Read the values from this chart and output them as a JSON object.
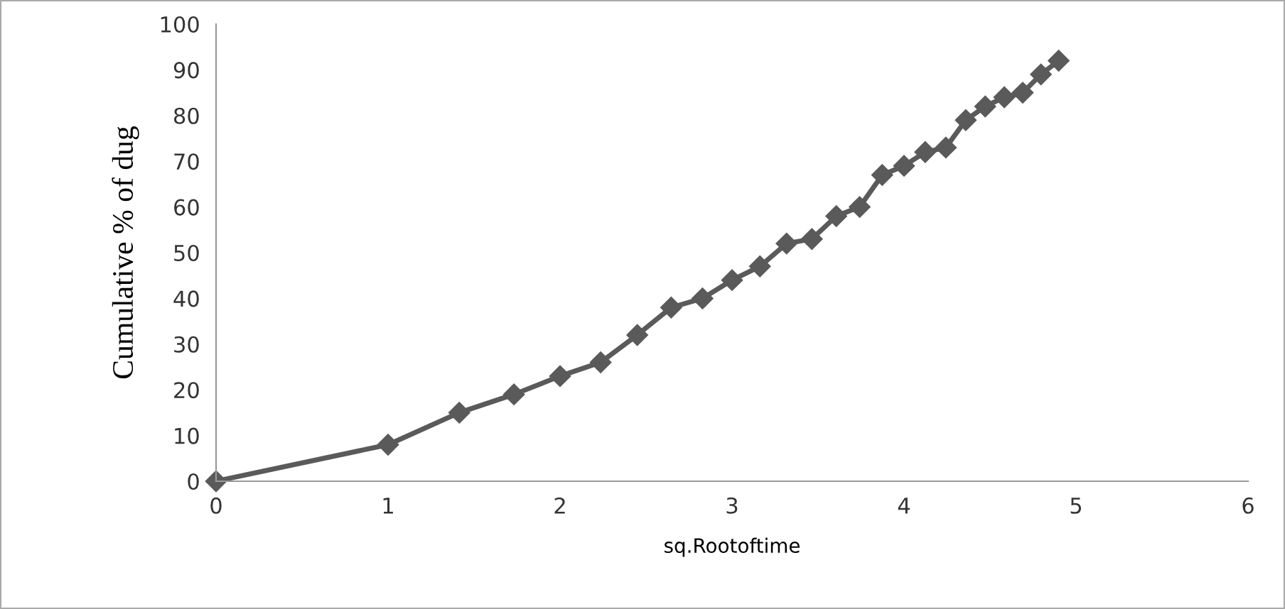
{
  "chart_data": {
    "type": "line",
    "xlabel": "sq.Rootoftime",
    "ylabel": "Cumulative % of dug",
    "x": [
      0,
      1,
      1.414,
      1.732,
      2,
      2.236,
      2.449,
      2.646,
      2.828,
      3,
      3.162,
      3.317,
      3.464,
      3.606,
      3.742,
      3.873,
      4,
      4.123,
      4.243,
      4.359,
      4.472,
      4.583,
      4.69,
      4.796,
      4.899
    ],
    "series": [
      {
        "color": "#5a5a5a",
        "values": [
          0,
          8,
          15,
          19,
          23,
          26,
          32,
          38,
          40,
          44,
          47,
          52,
          53,
          58,
          60,
          67,
          69,
          72,
          73,
          79,
          82,
          84,
          85,
          89,
          92
        ]
      }
    ],
    "xlim": [
      0,
      6
    ],
    "xticks": [
      0,
      1,
      2,
      3,
      4,
      5,
      6
    ],
    "ylim": [
      0,
      100
    ],
    "yticks": [
      0,
      10,
      20,
      30,
      40,
      50,
      60,
      70,
      80,
      90,
      100
    ],
    "grid": false,
    "legend": false,
    "marker": "diamond",
    "line_style": "solid"
  }
}
